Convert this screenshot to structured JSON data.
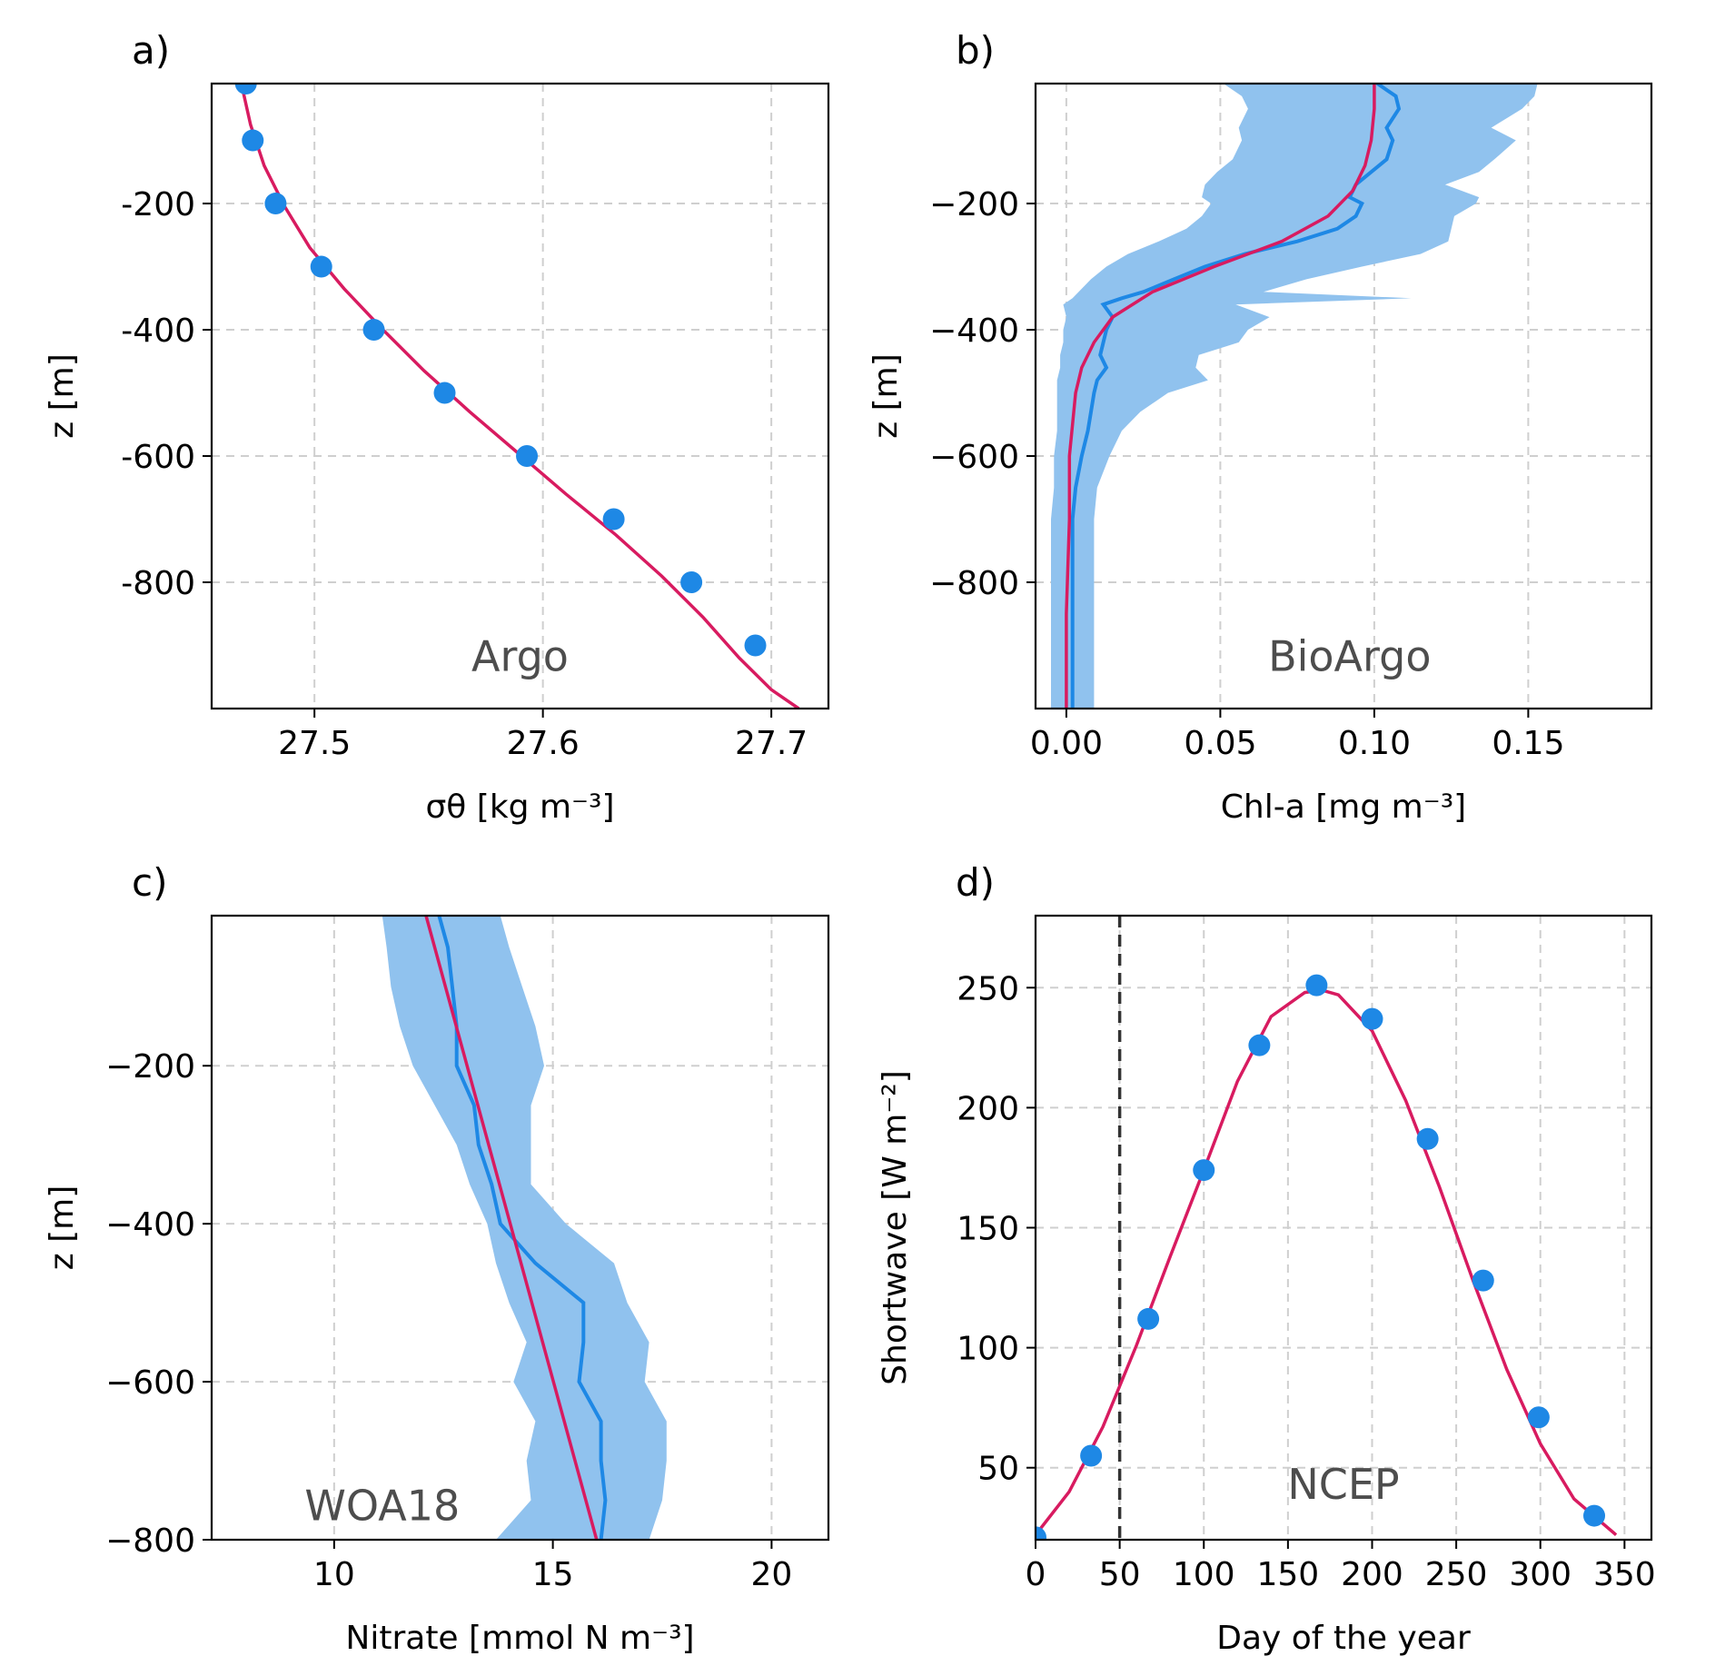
{
  "colors": {
    "point": "#1e88e5",
    "fit": "#d81b60",
    "band": "#90c2ee",
    "mean": "#1e88e5",
    "grid": "#cfcfcf",
    "vline": "#333333",
    "source": "#4d4d4d"
  },
  "chart_data": [
    {
      "type": "scatter",
      "panel_label": "a)",
      "source_label": "Argo",
      "xlabel": "σθ [kg m⁻³]",
      "ylabel": "z [m]",
      "xlim": [
        27.455,
        27.725
      ],
      "ylim": [
        -1000,
        -10
      ],
      "xticks": [
        27.5,
        27.6,
        27.7
      ],
      "xtick_labels": [
        "27.5",
        "27.6",
        "27.7"
      ],
      "yticks": [
        -200,
        -400,
        -600,
        -800
      ],
      "ytick_labels": [
        "-200",
        "-400",
        "-600",
        "-800"
      ],
      "grid": true,
      "series": [
        {
          "kind": "points",
          "x": [
            27.47,
            27.473,
            27.483,
            27.503,
            27.526,
            27.557,
            27.593,
            27.631,
            27.665,
            27.693
          ],
          "y": [
            -10,
            -100,
            -200,
            -300,
            -400,
            -500,
            -600,
            -700,
            -800,
            -900
          ]
        },
        {
          "kind": "fit_line",
          "x": [
            27.468,
            27.472,
            27.478,
            27.487,
            27.498,
            27.513,
            27.53,
            27.548,
            27.568,
            27.589,
            27.61,
            27.632,
            27.652,
            27.67,
            27.686,
            27.7,
            27.712
          ],
          "y": [
            -10,
            -75,
            -140,
            -205,
            -270,
            -335,
            -400,
            -465,
            -530,
            -595,
            -660,
            -725,
            -790,
            -855,
            -920,
            -970,
            -1000
          ]
        }
      ]
    },
    {
      "type": "line",
      "panel_label": "b)",
      "source_label": "BioArgo",
      "xlabel": "Chl-a [mg m⁻³]",
      "ylabel": "z [m]",
      "xlim": [
        -0.01,
        0.19
      ],
      "ylim": [
        -1000,
        -10
      ],
      "xticks": [
        0.0,
        0.05,
        0.1,
        0.15
      ],
      "xtick_labels": [
        "0.00",
        "0.05",
        "0.10",
        "0.15"
      ],
      "yticks": [
        -200,
        -400,
        -600,
        -800
      ],
      "ytick_labels": [
        "−200",
        "−400",
        "−600",
        "−800"
      ],
      "grid": true,
      "depth": [
        -10,
        -30,
        -50,
        -80,
        -100,
        -130,
        -150,
        -170,
        -190,
        -200,
        -220,
        -240,
        -260,
        -280,
        -300,
        -320,
        -340,
        -350,
        -360,
        -380,
        -400,
        -420,
        -440,
        -460,
        -480,
        -500,
        -530,
        -560,
        -600,
        -650,
        -700,
        -800,
        -900,
        -1000
      ],
      "mean": [
        0.101,
        0.107,
        0.108,
        0.104,
        0.106,
        0.104,
        0.099,
        0.094,
        0.092,
        0.096,
        0.094,
        0.088,
        0.075,
        0.058,
        0.045,
        0.035,
        0.025,
        0.018,
        0.012,
        0.015,
        0.013,
        0.012,
        0.011,
        0.013,
        0.01,
        0.009,
        0.008,
        0.007,
        0.005,
        0.003,
        0.002,
        0.002,
        0.002,
        0.002
      ],
      "band_lower": [
        0.051,
        0.057,
        0.059,
        0.056,
        0.057,
        0.054,
        0.049,
        0.045,
        0.044,
        0.047,
        0.044,
        0.039,
        0.03,
        0.02,
        0.013,
        0.008,
        0.004,
        0.002,
        -0.001,
        0.0,
        -0.001,
        -0.001,
        -0.002,
        -0.002,
        -0.003,
        -0.003,
        -0.003,
        -0.003,
        -0.004,
        -0.004,
        -0.005,
        -0.005,
        -0.005,
        -0.005
      ],
      "band_upper": [
        0.153,
        0.152,
        0.148,
        0.138,
        0.146,
        0.139,
        0.134,
        0.123,
        0.134,
        0.133,
        0.126,
        0.125,
        0.124,
        0.115,
        0.096,
        0.078,
        0.064,
        0.112,
        0.055,
        0.066,
        0.059,
        0.056,
        0.043,
        0.042,
        0.046,
        0.033,
        0.024,
        0.018,
        0.014,
        0.01,
        0.009,
        0.009,
        0.009,
        0.009
      ],
      "fit_x": [
        0.1,
        0.1,
        0.099,
        0.097,
        0.093,
        0.085,
        0.07,
        0.048,
        0.028,
        0.015,
        0.009,
        0.005,
        0.003,
        0.002,
        0.001,
        0.001,
        0.0,
        0.0
      ],
      "fit_y": [
        -10,
        -50,
        -100,
        -140,
        -180,
        -220,
        -260,
        -300,
        -340,
        -380,
        -420,
        -460,
        -500,
        -550,
        -600,
        -700,
        -850,
        -1000
      ]
    },
    {
      "type": "line",
      "panel_label": "c)",
      "source_label": "WOA18",
      "xlabel": "Nitrate [mmol N m⁻³]",
      "ylabel": "z [m]",
      "xlim": [
        7.2,
        21.3
      ],
      "ylim": [
        -800,
        -10
      ],
      "xticks": [
        10,
        15,
        20
      ],
      "xtick_labels": [
        "10",
        "15",
        "20"
      ],
      "yticks": [
        -200,
        -400,
        -600,
        -800
      ],
      "ytick_labels": [
        "−200",
        "−400",
        "−600",
        "−800"
      ],
      "grid": true,
      "depth": [
        -10,
        -50,
        -100,
        -150,
        -200,
        -250,
        -300,
        -350,
        -400,
        -450,
        -500,
        -550,
        -600,
        -650,
        -700,
        -750,
        -800
      ],
      "mean": [
        12.4,
        12.6,
        12.7,
        12.8,
        12.8,
        13.2,
        13.3,
        13.6,
        13.8,
        14.6,
        15.7,
        15.7,
        15.6,
        16.1,
        16.1,
        16.2,
        16.1
      ],
      "band_lower": [
        11.1,
        11.2,
        11.3,
        11.5,
        11.8,
        12.3,
        12.8,
        13.1,
        13.5,
        13.7,
        14.0,
        14.4,
        14.1,
        14.6,
        14.4,
        14.5,
        13.7
      ],
      "band_upper": [
        13.8,
        14.0,
        14.3,
        14.6,
        14.8,
        14.5,
        14.5,
        14.5,
        15.3,
        16.4,
        16.7,
        17.2,
        17.1,
        17.6,
        17.6,
        17.5,
        17.2
      ],
      "fit_x": [
        12.1,
        16.0
      ],
      "fit_y": [
        -10,
        -800
      ]
    },
    {
      "type": "scatter",
      "panel_label": "d)",
      "source_label": "NCEP",
      "xlabel": "Day of the year",
      "ylabel": "Shortwave [W m⁻²]",
      "xlim": [
        0,
        366
      ],
      "ylim": [
        20,
        280
      ],
      "xticks": [
        0,
        50,
        100,
        150,
        200,
        250,
        300,
        350
      ],
      "xtick_labels": [
        "0",
        "50",
        "100",
        "150",
        "200",
        "250",
        "300",
        "350"
      ],
      "yticks": [
        50,
        100,
        150,
        200,
        250
      ],
      "ytick_labels": [
        "50",
        "100",
        "150",
        "200",
        "250"
      ],
      "grid": true,
      "vline_x": 50,
      "points_x": [
        0,
        33,
        67,
        100,
        133,
        167,
        200,
        233,
        266,
        299,
        332
      ],
      "points_y": [
        21,
        55,
        112,
        174,
        226,
        251,
        237,
        187,
        128,
        71,
        30
      ],
      "fit_x": [
        0,
        20,
        40,
        60,
        80,
        100,
        120,
        140,
        160,
        170,
        180,
        200,
        220,
        240,
        260,
        280,
        300,
        320,
        345
      ],
      "fit_y": [
        22,
        40,
        67,
        101,
        138,
        174,
        211,
        238,
        248,
        249,
        247,
        232,
        203,
        167,
        128,
        91,
        60,
        37,
        22
      ]
    }
  ]
}
